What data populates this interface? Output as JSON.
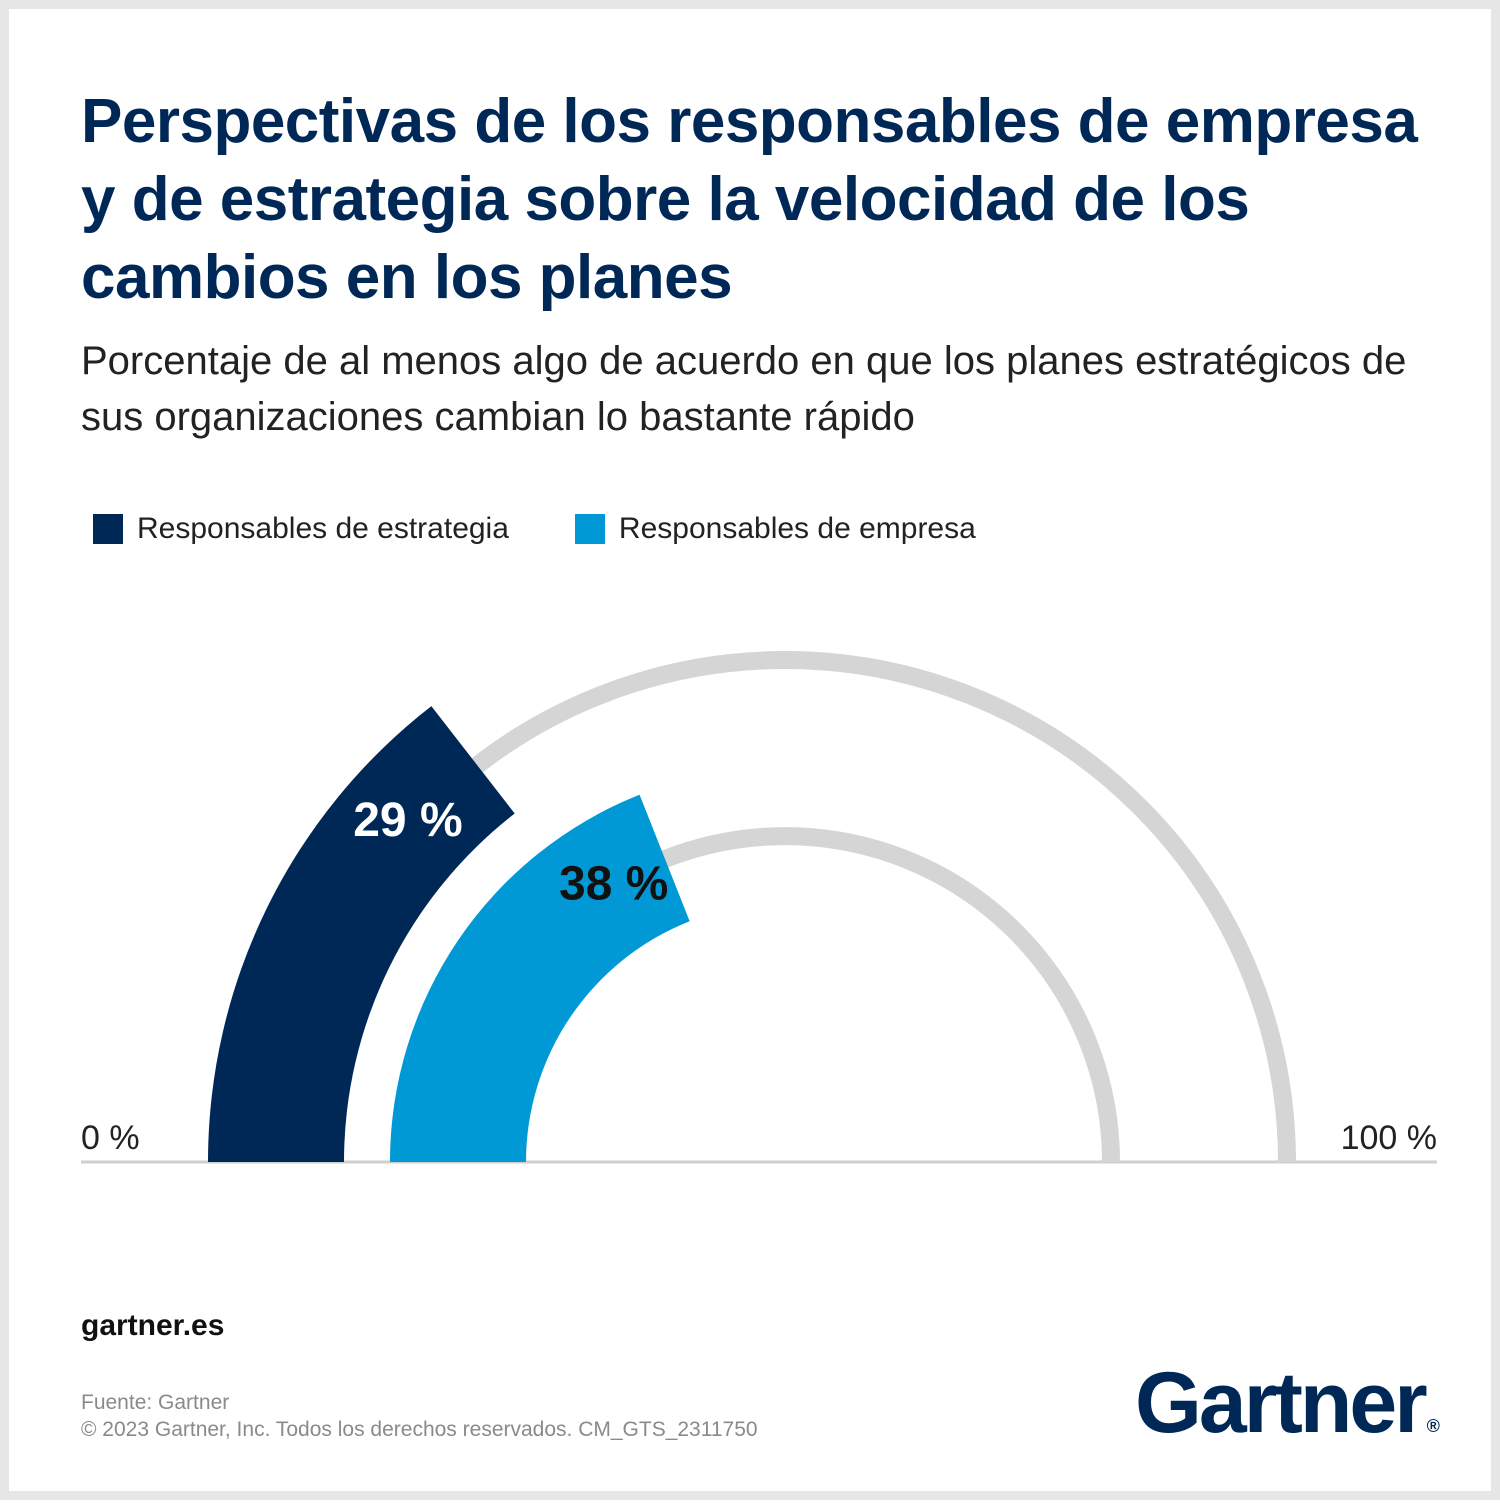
{
  "title": "Perspectivas de los responsables de empresa y de estrategia sobre la velocidad de los cambios en los planes",
  "subtitle": "Porcentaje de al menos algo de acuerdo en que los planes estratégicos de sus organizaciones cambian lo bastante rápido",
  "legend": [
    {
      "label": "Responsables de estrategia",
      "color": "#002856"
    },
    {
      "label": "Responsables de empresa",
      "color": "#0099d6"
    }
  ],
  "chart_data": {
    "type": "gauge",
    "range": [
      0,
      100
    ],
    "min_label": "0 %",
    "max_label": "100 %",
    "track_color": "#d5d5d5",
    "series": [
      {
        "name": "Responsables de estrategia",
        "value": 29,
        "label": "29 %",
        "color": "#002856",
        "label_color": "#ffffff"
      },
      {
        "name": "Responsables de empresa",
        "value": 38,
        "label": "38 %",
        "color": "#0099d6",
        "label_color": "#111111"
      }
    ]
  },
  "footer": {
    "site": "gartner.es",
    "source": "Fuente: Gartner",
    "copyright": "© 2023 Gartner, Inc. Todos los derechos reservados. CM_GTS_2311750",
    "logo_text": "Gartner",
    "logo_mark": "®"
  }
}
